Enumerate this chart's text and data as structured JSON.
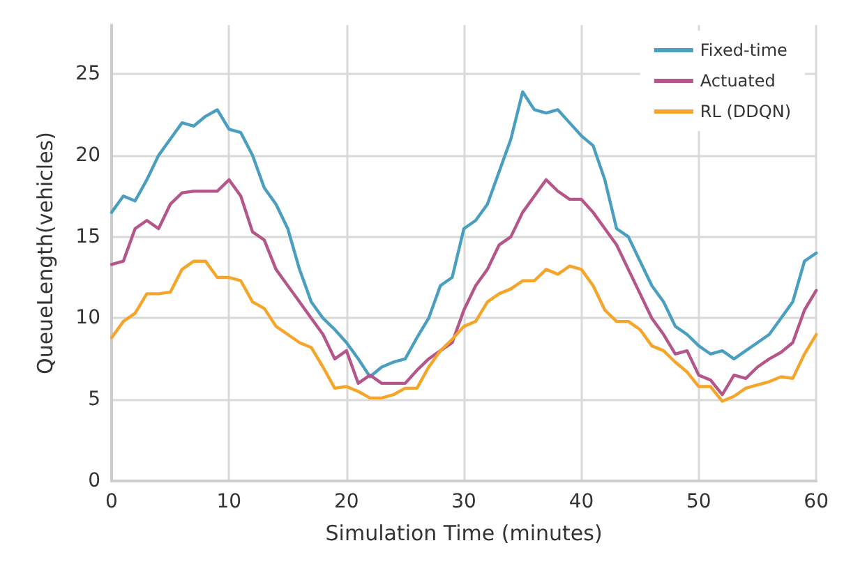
{
  "chart_data": {
    "type": "line",
    "xlabel": "Simulation Time (minutes)",
    "ylabel": "QueueLength(vehicles)",
    "x": [
      0,
      1,
      2,
      3,
      4,
      5,
      6,
      7,
      8,
      9,
      10,
      11,
      12,
      13,
      14,
      15,
      16,
      17,
      18,
      19,
      20,
      21,
      22,
      23,
      24,
      25,
      26,
      27,
      28,
      29,
      30,
      31,
      32,
      33,
      34,
      35,
      36,
      37,
      38,
      39,
      40,
      41,
      42,
      43,
      44,
      45,
      46,
      47,
      48,
      49,
      50,
      51,
      52,
      53,
      54,
      55,
      56,
      57,
      58,
      59,
      60
    ],
    "series": [
      {
        "name": "Fixed-time",
        "color": "#4a9fc0",
        "values": [
          16.5,
          17.5,
          17.2,
          18.5,
          20,
          21,
          22,
          21.8,
          22.4,
          22.8,
          21.6,
          21.4,
          20,
          18,
          17,
          15.5,
          13,
          11,
          10,
          9.3,
          8.5,
          7.5,
          6.4,
          7,
          7.3,
          7.5,
          8.8,
          10,
          12,
          12.5,
          15.5,
          16,
          17,
          19,
          21,
          23.9,
          22.8,
          22.6,
          22.8,
          22,
          21.2,
          20.6,
          18.5,
          15.5,
          15,
          13.5,
          12,
          11,
          9.5,
          9,
          8.3,
          7.8,
          8,
          7.5,
          8,
          8.5,
          9,
          10,
          11,
          13.5,
          14
        ]
      },
      {
        "name": "Actuated",
        "color": "#b5568a",
        "values": [
          13.3,
          13.5,
          15.5,
          16,
          15.5,
          17,
          17.7,
          17.8,
          17.8,
          17.8,
          18.5,
          17.5,
          15.3,
          14.8,
          13,
          12,
          11,
          10,
          9,
          7.5,
          8,
          6,
          6.5,
          6,
          6,
          6,
          6.8,
          7.5,
          8,
          8.5,
          10.5,
          12,
          13,
          14.5,
          15,
          16.5,
          17.5,
          18.5,
          17.8,
          17.3,
          17.3,
          16.5,
          15.5,
          14.5,
          13,
          11.5,
          10,
          9,
          7.8,
          8,
          6.5,
          6.2,
          5.3,
          6.5,
          6.3,
          7,
          7.5,
          7.9,
          8.5,
          10.5,
          11.7
        ]
      },
      {
        "name": "RL (DDQN)",
        "color": "#f5a52a",
        "values": [
          8.8,
          9.8,
          10.3,
          11.5,
          11.5,
          11.6,
          13,
          13.5,
          13.5,
          12.5,
          12.5,
          12.3,
          11,
          10.6,
          9.5,
          9,
          8.5,
          8.2,
          7,
          5.7,
          5.8,
          5.5,
          5.1,
          5.1,
          5.3,
          5.7,
          5.7,
          7,
          8,
          8.7,
          9.5,
          9.8,
          11,
          11.5,
          11.8,
          12.3,
          12.3,
          13,
          12.7,
          13.2,
          13,
          12,
          10.5,
          9.8,
          9.8,
          9.3,
          8.3,
          8,
          7.3,
          6.7,
          5.8,
          5.8,
          4.9,
          5.2,
          5.7,
          5.9,
          6.1,
          6.4,
          6.3,
          7.8,
          9
        ]
      }
    ],
    "xlim": [
      0,
      60
    ],
    "xticks": [
      0,
      10,
      20,
      30,
      40,
      50,
      60
    ],
    "ylim": [
      0,
      28
    ],
    "yticks": [
      0,
      5,
      10,
      15,
      20,
      25
    ],
    "grid": true,
    "legend": "top right",
    "marker": "none",
    "line_style": "solid"
  }
}
